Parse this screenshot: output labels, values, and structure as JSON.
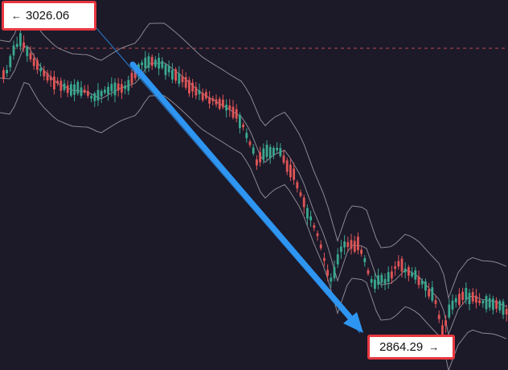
{
  "high_label": {
    "arrow": "←",
    "price": "3026.06"
  },
  "low_label": {
    "price": "2864.29",
    "arrow": "→"
  },
  "colors": {
    "background": "#1c1929",
    "bull": "#3aa88e",
    "bear": "#e05556",
    "band": "#8b8892",
    "trend_arrow": "#2e96f2",
    "label_border": "#e8373f",
    "high_line": "#d9534f"
  },
  "chart_data": {
    "type": "candlestick",
    "bollinger_bands": true,
    "price_range": [
      2864.29,
      3026.06
    ],
    "annotations": [
      {
        "kind": "high",
        "value": 3026.06
      },
      {
        "kind": "low",
        "value": 2864.29
      }
    ],
    "trend_direction": "down"
  }
}
